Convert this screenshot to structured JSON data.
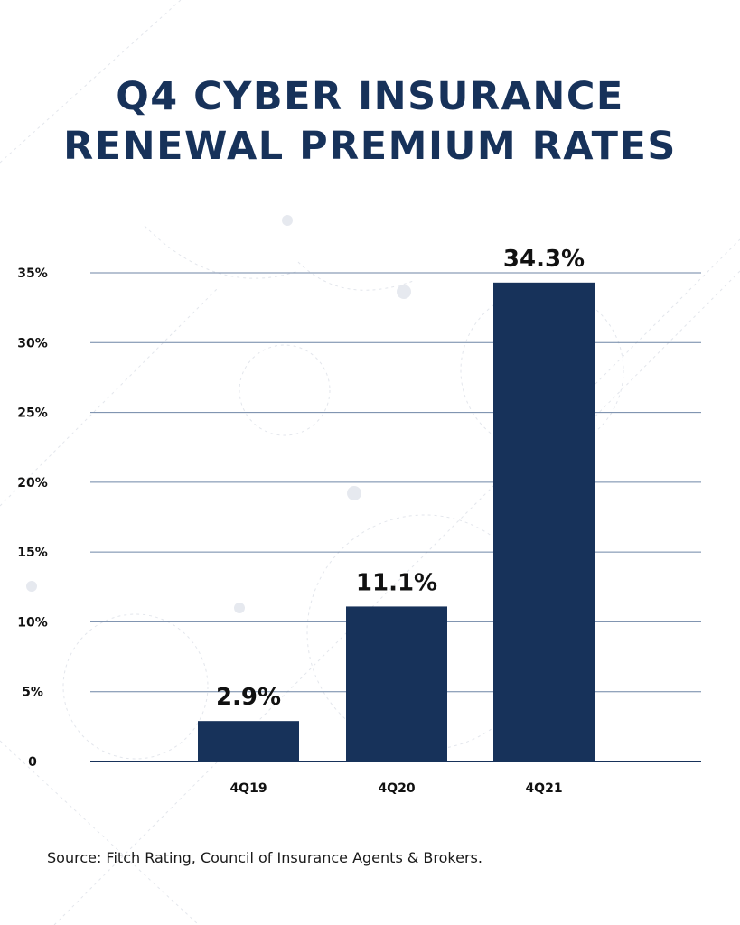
{
  "title_lines": [
    "Q4 CYBER INSURANCE",
    "RENEWAL PREMIUM RATES"
  ],
  "source": "Source: Fitch Rating, Council of Insurance Agents & Brokers.",
  "colors": {
    "bar": "#17325a",
    "grid": "#6f86a6",
    "text": "#17325a"
  },
  "chart_data": {
    "type": "bar",
    "title": "Q4 CYBER INSURANCE RENEWAL PREMIUM RATES",
    "categories": [
      "4Q19",
      "4Q20",
      "4Q21"
    ],
    "values": [
      2.9,
      11.1,
      34.3
    ],
    "value_labels": [
      "2.9%",
      "11.1%",
      "34.3%"
    ],
    "yticks": [
      0,
      5,
      10,
      15,
      20,
      25,
      30,
      35
    ],
    "ytick_labels": [
      "0",
      "5%",
      "10%",
      "15%",
      "20%",
      "25%",
      "30%",
      "35%"
    ],
    "ylim": [
      0,
      35
    ],
    "grid": true,
    "legend": "none"
  }
}
